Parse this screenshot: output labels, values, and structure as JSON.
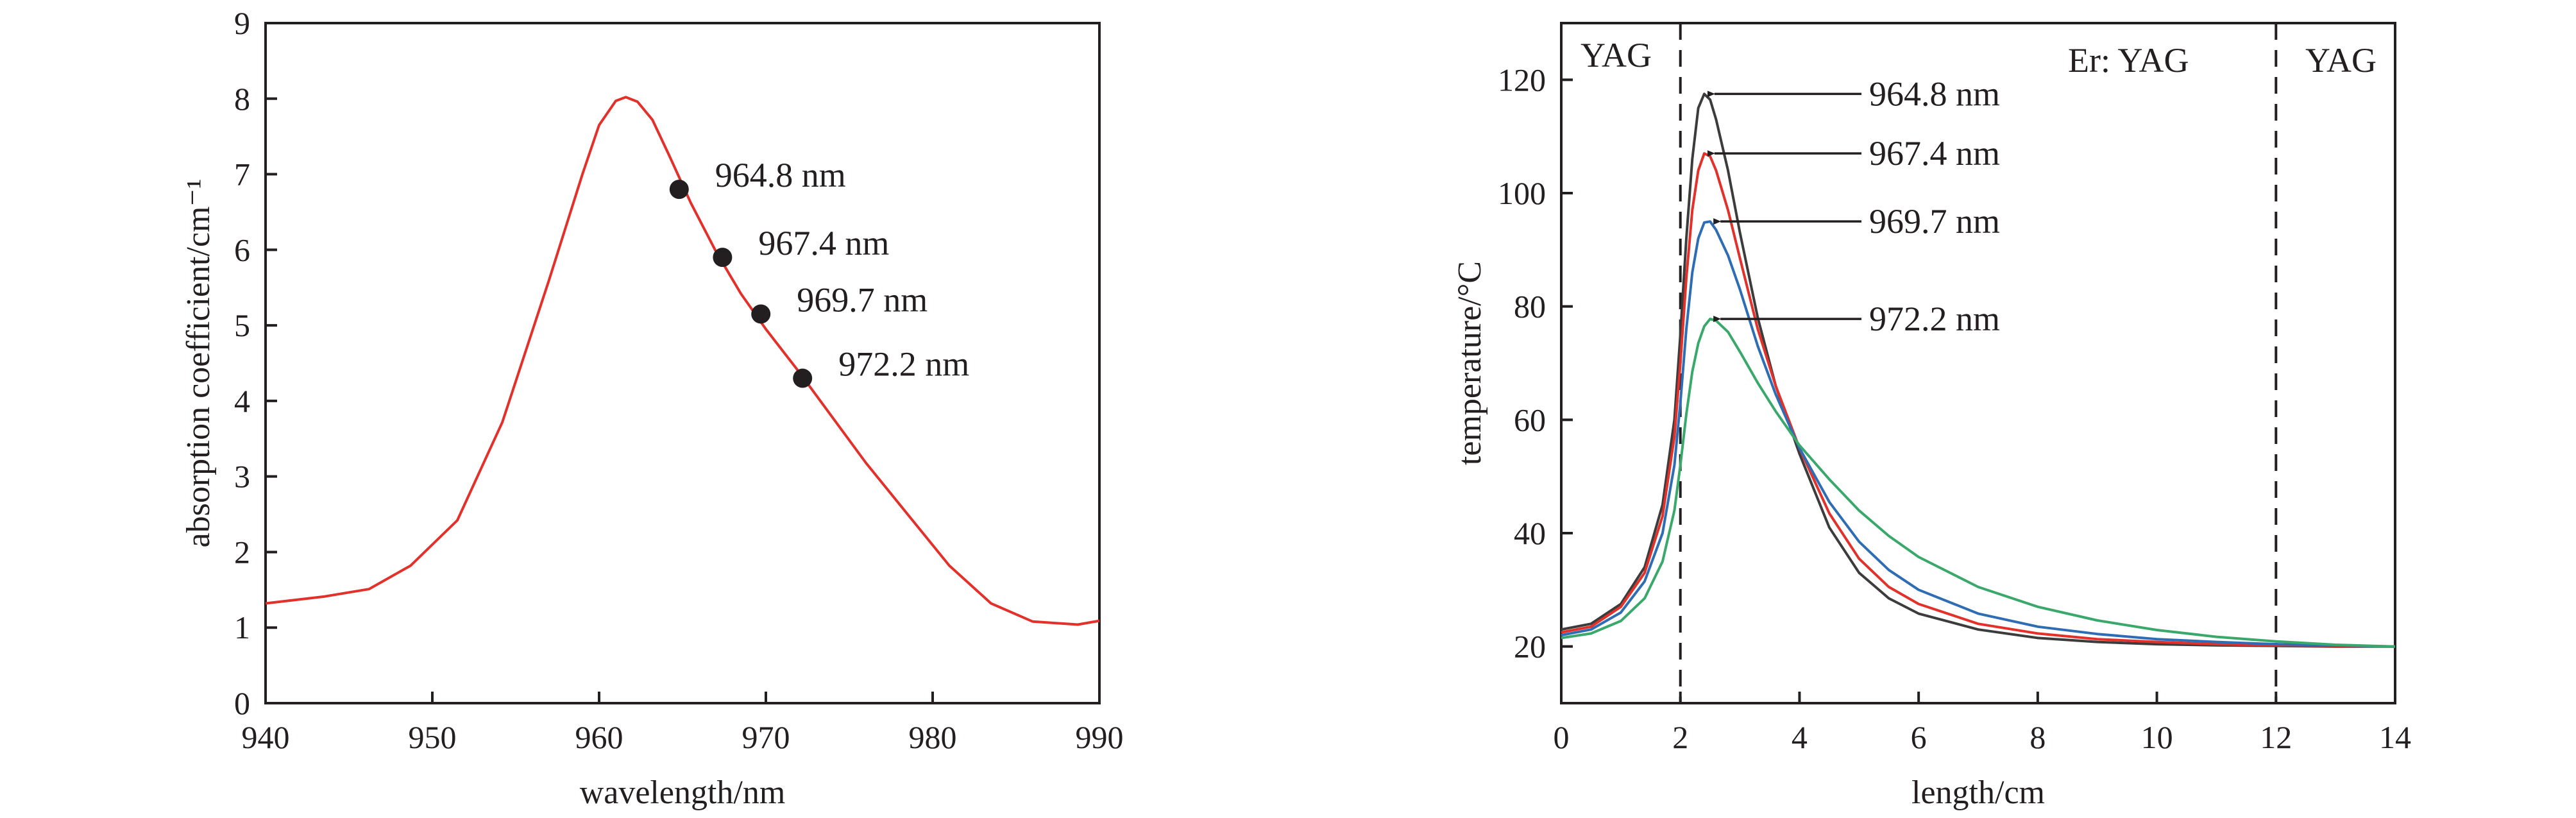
{
  "chart_data": [
    {
      "type": "line",
      "xlabel": "wavelength/nm",
      "ylabel": "absorption coefficient/cm⁻¹",
      "xlim": [
        940,
        990
      ],
      "ylim": [
        0,
        9
      ],
      "x_ticks": [
        "940",
        "950",
        "960",
        "970",
        "980",
        "990"
      ],
      "y_ticks": [
        "0",
        "1",
        "2",
        "3",
        "4",
        "5",
        "6",
        "7",
        "8",
        "9"
      ],
      "grid": false,
      "series": [
        {
          "color": "#e2312b",
          "x": [
            940,
            943.5,
            946.2,
            948.7,
            951.5,
            954.2,
            957.0,
            959.0,
            960.0,
            961.0,
            961.6,
            962.3,
            963.2,
            964.2,
            965.5,
            967.0,
            968.5,
            970.0,
            972.0,
            974.0,
            976.0,
            978.5,
            981.0,
            983.5,
            986.0,
            988.7,
            990.0
          ],
          "y": [
            1.32,
            1.41,
            1.51,
            1.82,
            2.42,
            3.72,
            5.6,
            7.0,
            7.65,
            7.97,
            8.02,
            7.96,
            7.72,
            7.25,
            6.62,
            5.98,
            5.42,
            4.95,
            4.38,
            3.78,
            3.18,
            2.5,
            1.82,
            1.32,
            1.08,
            1.04,
            1.09
          ]
        }
      ],
      "markers": [
        {
          "x": 964.8,
          "y": 6.8,
          "label": "964.8 nm"
        },
        {
          "x": 967.4,
          "y": 5.9,
          "label": "967.4 nm"
        },
        {
          "x": 969.7,
          "y": 5.15,
          "label": "969.7 nm"
        },
        {
          "x": 972.2,
          "y": 4.3,
          "label": "972.2 nm"
        }
      ]
    },
    {
      "type": "line",
      "xlabel": "length/cm",
      "ylabel": "temperature/°C",
      "xlim": [
        0,
        14
      ],
      "ylim": [
        10,
        130
      ],
      "x_ticks": [
        "0",
        "2",
        "4",
        "6",
        "8",
        "10",
        "12",
        "14"
      ],
      "y_ticks": [
        "20",
        "40",
        "60",
        "80",
        "100",
        "120"
      ],
      "grid": false,
      "regions": [
        {
          "label": "YAG"
        },
        {
          "label": "Er: YAG"
        },
        {
          "label": "YAG"
        }
      ],
      "boundaries": [
        2,
        12
      ],
      "series": [
        {
          "label": "964.8 nm",
          "color": "#3c3c3c",
          "x": [
            0,
            0.5,
            1.0,
            1.4,
            1.7,
            1.9,
            2.0,
            2.1,
            2.2,
            2.3,
            2.4,
            2.5,
            2.6,
            2.8,
            3.0,
            3.3,
            3.6,
            4.0,
            4.5,
            5.0,
            5.5,
            6.0,
            7.0,
            8.0,
            9.0,
            10.0,
            11.0,
            12.0,
            13.0,
            14.0
          ],
          "y": [
            23,
            24,
            27.5,
            34,
            45,
            60,
            75,
            92,
            106,
            115,
            117.5,
            116.5,
            113,
            104,
            93,
            78,
            66,
            54,
            41,
            33,
            28.5,
            25.8,
            23,
            21.5,
            20.8,
            20.4,
            20.2,
            20.1,
            20,
            20
          ]
        },
        {
          "label": "967.4 nm",
          "color": "#e2312b",
          "x": [
            0,
            0.5,
            1.0,
            1.4,
            1.7,
            1.9,
            2.0,
            2.1,
            2.2,
            2.3,
            2.4,
            2.5,
            2.6,
            2.8,
            3.0,
            3.3,
            3.6,
            4.0,
            4.5,
            5.0,
            5.5,
            6.0,
            7.0,
            8.0,
            9.0,
            10.0,
            11.0,
            12.0,
            13.0,
            14.0
          ],
          "y": [
            22.5,
            23.5,
            27,
            33,
            43,
            57,
            70,
            85,
            97,
            104,
            107,
            106.5,
            104,
            97,
            88.5,
            76,
            66,
            55,
            43.5,
            35.5,
            30.5,
            27.5,
            24,
            22.3,
            21.3,
            20.8,
            20.4,
            20.2,
            20.1,
            20
          ]
        },
        {
          "label": "969.7 nm",
          "color": "#2e6db4",
          "x": [
            0,
            0.5,
            1.0,
            1.4,
            1.7,
            1.9,
            2.0,
            2.1,
            2.2,
            2.3,
            2.4,
            2.5,
            2.6,
            2.8,
            3.0,
            3.3,
            3.6,
            4.0,
            4.5,
            5.0,
            5.5,
            6.0,
            7.0,
            8.0,
            9.0,
            10.0,
            11.0,
            12.0,
            13.0,
            14.0
          ],
          "y": [
            22,
            23,
            26,
            31.5,
            40,
            52,
            63,
            76,
            86,
            92,
            94.8,
            95,
            93.5,
            89,
            83,
            73,
            64.5,
            55,
            45.5,
            38.5,
            33.5,
            30,
            25.8,
            23.5,
            22.2,
            21.3,
            20.8,
            20.4,
            20.2,
            20
          ]
        },
        {
          "label": "972.2 nm",
          "color": "#3aa86b",
          "x": [
            0,
            0.5,
            1.0,
            1.4,
            1.7,
            1.9,
            2.0,
            2.1,
            2.2,
            2.3,
            2.4,
            2.5,
            2.6,
            2.8,
            3.0,
            3.3,
            3.6,
            4.0,
            4.5,
            5.0,
            5.5,
            6.0,
            7.0,
            8.0,
            9.0,
            10.0,
            11.0,
            12.0,
            13.0,
            14.0
          ],
          "y": [
            21.5,
            22.3,
            24.5,
            28.5,
            35,
            44,
            52,
            61,
            68.5,
            73.5,
            76.5,
            77.8,
            77.5,
            75.5,
            72,
            66.5,
            61.5,
            55.5,
            49.5,
            44,
            39.5,
            35.8,
            30.5,
            27,
            24.6,
            22.9,
            21.7,
            20.9,
            20.3,
            20
          ]
        }
      ]
    }
  ]
}
